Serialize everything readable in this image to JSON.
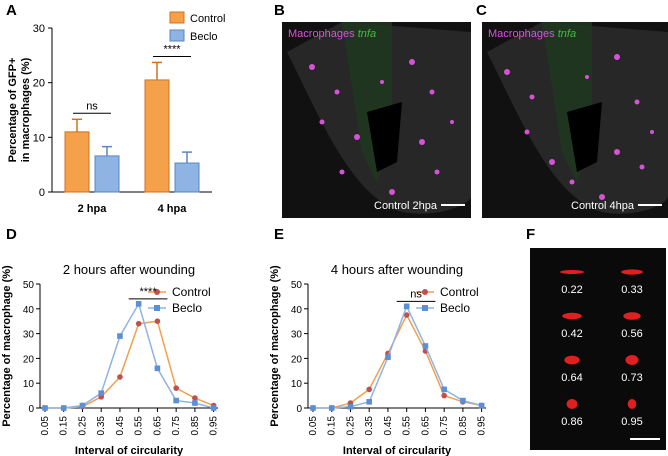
{
  "panels": {
    "A": {
      "letter": "A"
    },
    "B": {
      "letter": "B",
      "label_macro": "Macrophages",
      "label_tnfa": "tnfa",
      "caption": "Control 2hpa"
    },
    "C": {
      "letter": "C",
      "label_macro": "Macrophages",
      "label_tnfa": "tnfa",
      "caption": "Control 4hpa"
    },
    "D": {
      "letter": "D"
    },
    "E": {
      "letter": "E"
    },
    "F": {
      "letter": "F",
      "values": [
        "0.22",
        "0.33",
        "0.42",
        "0.56",
        "0.64",
        "0.73",
        "0.86",
        "0.95"
      ]
    }
  },
  "colors": {
    "control_bar": "#f5a04a",
    "beclo_bar": "#8fb3e3",
    "control_line": "#c0504d",
    "beclo_line": "#5b8fd6",
    "magenta": "#d653d8",
    "green": "#3fbf3f"
  },
  "chart_data": [
    {
      "id": "A",
      "type": "bar",
      "categories": [
        "2 hpa",
        "4 hpa"
      ],
      "series": [
        {
          "name": "Control",
          "values": [
            11,
            20.5
          ],
          "errors": [
            2.3,
            3.2
          ]
        },
        {
          "name": "Beclo",
          "values": [
            6.6,
            5.3
          ],
          "errors": [
            1.7,
            2.0
          ]
        }
      ],
      "ylabel": "Percentage of GFP+ in macrophages (%)",
      "ylim": [
        0,
        30
      ],
      "yticks": [
        "0",
        "10",
        "20",
        "30"
      ],
      "annotations": [
        "ns",
        "****"
      ],
      "legend": "top-right"
    },
    {
      "id": "D",
      "type": "line",
      "title": "2 hours after wounding",
      "x": [
        "0.05",
        "0.15",
        "0.25",
        "0.35",
        "0.45",
        "0.55",
        "0.65",
        "0.75",
        "0.85",
        "0.95"
      ],
      "series": [
        {
          "name": "Control",
          "values": [
            0,
            0,
            0.5,
            4.5,
            12.5,
            34,
            35,
            8,
            4,
            1
          ]
        },
        {
          "name": "Beclo",
          "values": [
            0,
            0,
            1,
            6,
            29,
            42,
            16,
            3,
            2,
            0
          ]
        }
      ],
      "xlabel": "Interval of circularity",
      "ylabel": "Percentage of macrophage (%)",
      "ylim": [
        0,
        50
      ],
      "yticks": [
        "0",
        "10",
        "20",
        "30",
        "40",
        "50"
      ],
      "annotations": [
        "****"
      ],
      "legend": "top-right"
    },
    {
      "id": "E",
      "type": "line",
      "title": "4 hours after wounding",
      "x": [
        "0.05",
        "0.15",
        "0.25",
        "0.35",
        "0.45",
        "0.55",
        "0.65",
        "0.75",
        "0.85",
        "0.95"
      ],
      "series": [
        {
          "name": "Control",
          "values": [
            0,
            0,
            2,
            7.5,
            22,
            37.5,
            23,
            5,
            2.5,
            1
          ]
        },
        {
          "name": "Beclo",
          "values": [
            0,
            0,
            0.5,
            2.5,
            20.5,
            41,
            25,
            7.5,
            3,
            1
          ]
        }
      ],
      "xlabel": "Interval of circularity",
      "ylabel": "Percentage of macrophage (%)",
      "ylim": [
        0,
        50
      ],
      "yticks": [
        "0",
        "10",
        "20",
        "30",
        "40",
        "50"
      ],
      "annotations": [
        "ns"
      ],
      "legend": "top-right"
    }
  ]
}
